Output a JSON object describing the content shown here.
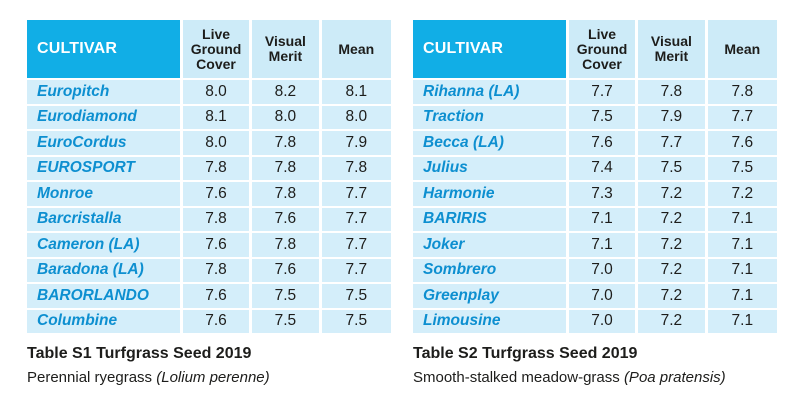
{
  "left": {
    "headers": {
      "cultivar": "CULTIVAR",
      "live": "Live\nGround\nCover",
      "visual": "Visual\nMerit",
      "mean": "Mean"
    },
    "rows": [
      [
        "Europitch",
        "8.0",
        "8.2",
        "8.1"
      ],
      [
        "Eurodiamond",
        "8.1",
        "8.0",
        "8.0"
      ],
      [
        "EuroCordus",
        "8.0",
        "7.8",
        "7.9"
      ],
      [
        "EUROSPORT",
        "7.8",
        "7.8",
        "7.8"
      ],
      [
        "Monroe",
        "7.6",
        "7.8",
        "7.7"
      ],
      [
        "Barcristalla",
        "7.8",
        "7.6",
        "7.7"
      ],
      [
        "Cameron (LA)",
        "7.6",
        "7.8",
        "7.7"
      ],
      [
        "Baradona (LA)",
        "7.8",
        "7.6",
        "7.7"
      ],
      [
        "BARORLANDO",
        "7.6",
        "7.5",
        "7.5"
      ],
      [
        "Columbine",
        "7.6",
        "7.5",
        "7.5"
      ]
    ],
    "caption": "Table S1 Turfgrass Seed 2019",
    "subtitle_plain": "Perennial ryegrass ",
    "subtitle_italic": "(Lolium perenne)"
  },
  "right": {
    "headers": {
      "cultivar": "CULTIVAR",
      "live": "Live\nGround\nCover",
      "visual": "Visual\nMerit",
      "mean": "Mean"
    },
    "rows": [
      [
        "Rihanna (LA)",
        "7.7",
        "7.8",
        "7.8"
      ],
      [
        "Traction",
        "7.5",
        "7.9",
        "7.7"
      ],
      [
        "Becca (LA)",
        "7.6",
        "7.7",
        "7.6"
      ],
      [
        "Julius",
        "7.4",
        "7.5",
        "7.5"
      ],
      [
        "Harmonie",
        "7.3",
        "7.2",
        "7.2"
      ],
      [
        "BARIRIS",
        "7.1",
        "7.2",
        "7.1"
      ],
      [
        "Joker",
        "7.1",
        "7.2",
        "7.1"
      ],
      [
        "Sombrero",
        "7.0",
        "7.2",
        "7.1"
      ],
      [
        "Greenplay",
        "7.0",
        "7.2",
        "7.1"
      ],
      [
        "Limousine",
        "7.0",
        "7.2",
        "7.1"
      ]
    ],
    "caption": "Table S2 Turfgrass Seed 2019",
    "subtitle_plain": "Smooth-stalked meadow-grass ",
    "subtitle_italic": "(Poa pratensis)"
  },
  "colors": {
    "header_blue": "#11aee6",
    "header_light": "#cdebf8",
    "row_bg": "#d4eefa",
    "cultivar_text": "#0d8fd0"
  }
}
